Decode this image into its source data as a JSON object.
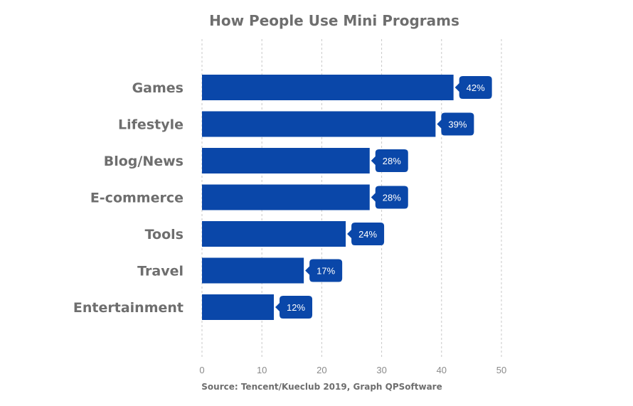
{
  "chart_data": {
    "type": "bar",
    "orientation": "horizontal",
    "title": "How People Use Mini Programs",
    "source": "Source: Tencent/Kueclub 2019, Graph QPSoftware",
    "categories": [
      "Games",
      "Lifestyle",
      "Blog/News",
      "E-commerce",
      "Tools",
      "Travel",
      "Entertainment"
    ],
    "values": [
      42,
      39,
      28,
      28,
      24,
      17,
      12
    ],
    "value_labels": [
      "42%",
      "39%",
      "28%",
      "28%",
      "24%",
      "17%",
      "12%"
    ],
    "xlim": [
      0,
      50
    ],
    "xticks": [
      0,
      10,
      20,
      30,
      40,
      50
    ],
    "grid": "vertical dashed",
    "bar_color": "#0a47a9",
    "label_color": "#6e6e6e",
    "grid_color": "#c8c8c8"
  }
}
